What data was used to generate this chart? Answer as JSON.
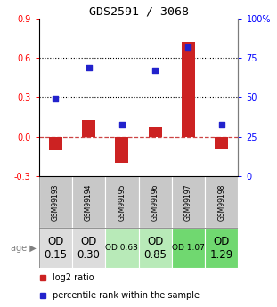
{
  "title": "GDS2591 / 3068",
  "samples": [
    "GSM99193",
    "GSM99194",
    "GSM99195",
    "GSM99196",
    "GSM99197",
    "GSM99198"
  ],
  "log2_ratio": [
    -0.1,
    0.13,
    -0.2,
    0.07,
    0.72,
    -0.09
  ],
  "percentile_rank": [
    49,
    69,
    33,
    67,
    82,
    33
  ],
  "ylim_left": [
    -0.3,
    0.9
  ],
  "ylim_right": [
    0,
    100
  ],
  "y_left_ticks": [
    -0.3,
    0.0,
    0.3,
    0.6,
    0.9
  ],
  "y_right_ticks": [
    0,
    25,
    50,
    75,
    100
  ],
  "dotted_lines": [
    0.3,
    0.6
  ],
  "bar_color": "#cc2222",
  "dot_color": "#2222cc",
  "zero_line_color": "#cc4444",
  "age_labels": [
    "OD\n0.15",
    "OD\n0.30",
    "OD 0.63",
    "OD\n0.85",
    "OD 1.07",
    "OD\n1.29"
  ],
  "age_bg_colors": [
    "#dcdcdc",
    "#dcdcdc",
    "#b8eab8",
    "#b8eab8",
    "#70d870",
    "#70d870"
  ],
  "age_font_sizes": [
    8.5,
    8.5,
    6.5,
    8.5,
    6.5,
    8.5
  ],
  "sample_bg_color": "#c8c8c8",
  "legend_log2": "log2 ratio",
  "legend_pct": "percentile rank within the sample",
  "age_label": "age",
  "bar_width": 0.4
}
